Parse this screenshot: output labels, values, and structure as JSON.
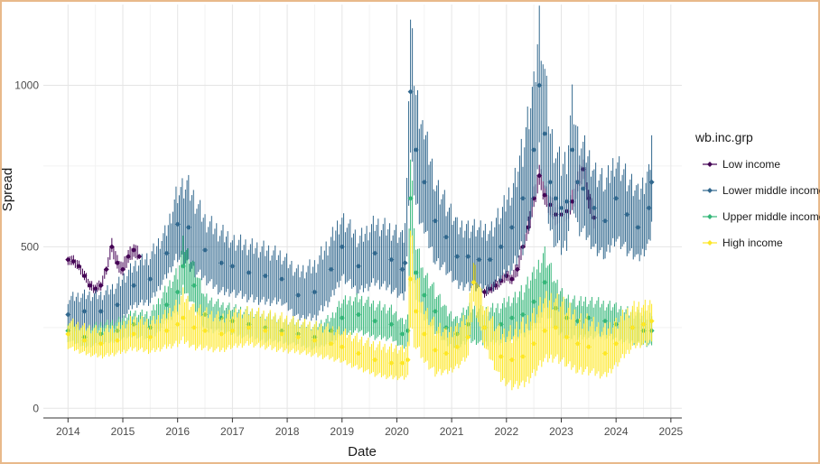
{
  "chart_data": {
    "type": "line",
    "title": "",
    "xlabel": "Date",
    "ylabel": "Spread",
    "x_ticks": [
      "2014",
      "2015",
      "2016",
      "2017",
      "2018",
      "2019",
      "2020",
      "2021",
      "2022",
      "2023",
      "2024",
      "2025"
    ],
    "y_ticks": [
      "0",
      "500",
      "1000"
    ],
    "xlim": [
      2013.55,
      2025.2
    ],
    "ylim": [
      -30,
      1250
    ],
    "grid": true,
    "legend": {
      "title": "wb.inc.grp",
      "placement": "right"
    },
    "series": [
      {
        "name": "Low income",
        "color": "#440154",
        "x": [
          2014.0,
          2014.1,
          2014.2,
          2014.3,
          2014.4,
          2014.5,
          2014.6,
          2014.7,
          2014.8,
          2014.9,
          2015.0,
          2015.1,
          2015.2,
          2015.3,
          2021.6,
          2021.7,
          2021.8,
          2021.9,
          2022.0,
          2022.1,
          2022.2,
          2022.3,
          2022.4,
          2022.5,
          2022.6,
          2022.7,
          2022.8,
          2022.9,
          2023.0,
          2023.1,
          2023.2,
          2023.3,
          2023.4,
          2023.5,
          2023.6
        ],
        "values": [
          460,
          455,
          440,
          410,
          380,
          370,
          380,
          430,
          500,
          450,
          430,
          470,
          490,
          470,
          360,
          370,
          380,
          395,
          410,
          400,
          430,
          500,
          560,
          650,
          720,
          660,
          630,
          600,
          600,
          610,
          640,
          700,
          740,
          650,
          590
        ],
        "spread": [
          14,
          14,
          14,
          14,
          14,
          14,
          14,
          14,
          20,
          20,
          20,
          20,
          20,
          20,
          15,
          15,
          15,
          15,
          15,
          15,
          20,
          20,
          25,
          30,
          30,
          30,
          30,
          30,
          30,
          30,
          30,
          30,
          30,
          30,
          30
        ]
      },
      {
        "name": "Lower middle income",
        "color": "#31688e",
        "x": [
          2014.0,
          2014.3,
          2014.6,
          2014.9,
          2015.2,
          2015.5,
          2015.8,
          2016.0,
          2016.2,
          2016.5,
          2016.8,
          2017.0,
          2017.3,
          2017.6,
          2017.9,
          2018.2,
          2018.5,
          2018.8,
          2019.0,
          2019.3,
          2019.6,
          2019.9,
          2020.1,
          2020.15,
          2020.25,
          2020.35,
          2020.5,
          2020.7,
          2020.9,
          2021.1,
          2021.3,
          2021.5,
          2021.7,
          2021.9,
          2022.1,
          2022.3,
          2022.5,
          2022.6,
          2022.7,
          2022.8,
          2022.9,
          2023.0,
          2023.1,
          2023.2,
          2023.3,
          2023.4,
          2023.6,
          2023.8,
          2024.0,
          2024.2,
          2024.4,
          2024.6,
          2024.65
        ],
        "values": [
          290,
          300,
          300,
          320,
          380,
          400,
          480,
          570,
          560,
          490,
          450,
          440,
          420,
          410,
          400,
          350,
          360,
          430,
          500,
          440,
          480,
          460,
          430,
          450,
          980,
          800,
          700,
          580,
          530,
          470,
          470,
          460,
          460,
          500,
          560,
          650,
          800,
          1000,
          850,
          700,
          650,
          620,
          640,
          800,
          700,
          680,
          620,
          580,
          650,
          600,
          560,
          620,
          700
        ],
        "spread": [
          50,
          50,
          50,
          60,
          60,
          70,
          70,
          100,
          120,
          90,
          90,
          80,
          80,
          80,
          70,
          70,
          80,
          90,
          90,
          80,
          90,
          90,
          90,
          100,
          200,
          170,
          150,
          120,
          100,
          90,
          90,
          90,
          90,
          100,
          120,
          150,
          180,
          200,
          180,
          150,
          140,
          130,
          130,
          150,
          140,
          130,
          120,
          110,
          120,
          110,
          100,
          110,
          130
        ]
      },
      {
        "name": "Upper middle income",
        "color": "#35b779",
        "x": [
          2014.0,
          2014.3,
          2014.6,
          2014.9,
          2015.2,
          2015.5,
          2015.8,
          2016.0,
          2016.1,
          2016.3,
          2016.5,
          2016.8,
          2017.0,
          2017.3,
          2017.6,
          2017.9,
          2018.2,
          2018.5,
          2018.8,
          2019.0,
          2019.3,
          2019.6,
          2019.9,
          2020.1,
          2020.2,
          2020.25,
          2020.35,
          2020.5,
          2020.7,
          2020.9,
          2021.1,
          2021.3,
          2021.6,
          2021.9,
          2022.1,
          2022.3,
          2022.5,
          2022.7,
          2022.9,
          2023.1,
          2023.3,
          2023.5,
          2023.8,
          2024.0,
          2024.3,
          2024.5,
          2024.65
        ],
        "values": [
          240,
          220,
          230,
          240,
          260,
          250,
          320,
          360,
          440,
          380,
          290,
          280,
          270,
          260,
          250,
          240,
          230,
          220,
          240,
          280,
          290,
          270,
          260,
          230,
          240,
          650,
          420,
          350,
          300,
          250,
          230,
          260,
          250,
          260,
          280,
          290,
          330,
          390,
          310,
          280,
          270,
          280,
          270,
          260,
          250,
          240,
          240
        ],
        "spread": [
          30,
          30,
          30,
          30,
          35,
          40,
          50,
          60,
          70,
          60,
          50,
          40,
          40,
          40,
          40,
          35,
          35,
          35,
          40,
          50,
          50,
          50,
          45,
          40,
          45,
          120,
          80,
          70,
          60,
          50,
          45,
          50,
          50,
          55,
          60,
          70,
          80,
          90,
          70,
          60,
          55,
          55,
          50,
          50,
          45,
          45,
          45
        ]
      },
      {
        "name": "High income",
        "color": "#fde725",
        "x": [
          2014.0,
          2014.3,
          2014.6,
          2014.9,
          2015.2,
          2015.5,
          2015.8,
          2016.0,
          2016.1,
          2016.3,
          2016.5,
          2016.8,
          2017.0,
          2017.3,
          2017.6,
          2017.9,
          2018.2,
          2018.5,
          2018.8,
          2019.0,
          2019.3,
          2019.6,
          2019.9,
          2020.1,
          2020.2,
          2020.25,
          2020.35,
          2020.5,
          2020.7,
          2020.9,
          2021.1,
          2021.3,
          2021.4,
          2021.6,
          2021.9,
          2022.1,
          2022.3,
          2022.5,
          2022.7,
          2022.9,
          2023.1,
          2023.3,
          2023.5,
          2023.8,
          2024.0,
          2024.3,
          2024.5,
          2024.65
        ],
        "values": [
          230,
          210,
          200,
          210,
          230,
          220,
          240,
          260,
          280,
          250,
          240,
          230,
          240,
          250,
          240,
          230,
          220,
          210,
          200,
          190,
          170,
          150,
          140,
          140,
          150,
          400,
          300,
          230,
          180,
          170,
          190,
          220,
          390,
          250,
          160,
          150,
          160,
          200,
          240,
          250,
          220,
          200,
          190,
          170,
          200,
          250,
          260,
          270
        ],
        "spread": [
          40,
          40,
          40,
          40,
          45,
          45,
          50,
          60,
          70,
          60,
          55,
          50,
          50,
          50,
          50,
          50,
          45,
          45,
          45,
          45,
          45,
          45,
          45,
          45,
          50,
          150,
          110,
          80,
          70,
          60,
          60,
          60,
          60,
          60,
          70,
          80,
          90,
          90,
          90,
          90,
          85,
          80,
          75,
          70,
          65,
          60,
          60,
          60
        ]
      }
    ]
  }
}
